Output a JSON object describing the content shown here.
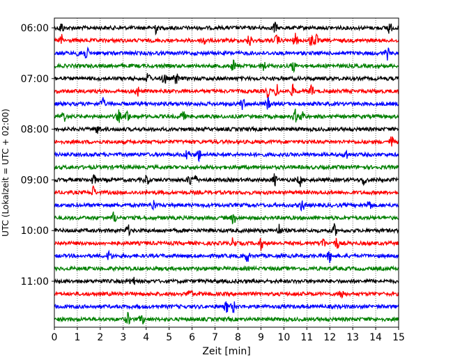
{
  "chart_data": {
    "type": "line",
    "title": "",
    "xlabel": "Zeit  [min]",
    "ylabel": "UTC (Lokalzeit = UTC + 02:00)",
    "xlim": [
      0,
      15
    ],
    "x_ticks": [
      "0",
      "1",
      "2",
      "3",
      "4",
      "5",
      "6",
      "7",
      "8",
      "9",
      "10",
      "11",
      "12",
      "13",
      "14",
      "15"
    ],
    "y_ticks": [
      "06:00",
      "07:00",
      "08:00",
      "09:00",
      "10:00",
      "11:00"
    ],
    "vertical_grid": "dotted",
    "trace_interval_min": 15,
    "trace_count": 24,
    "series_colors": [
      "#000000",
      "#ff0000",
      "#0000ff",
      "#008000"
    ],
    "events": [
      [
        0.3,
        4.4,
        9.6,
        14.6
      ],
      [
        0.3,
        6.5,
        8.5,
        9.7,
        10.5,
        11.2,
        11.4
      ],
      [
        1.1,
        1.4,
        14.5
      ],
      [
        7.8,
        9.1,
        10.4
      ],
      [
        4.1,
        4.8,
        5.3
      ],
      [
        3.6,
        9.3,
        9.7,
        10.4,
        11.2
      ],
      [
        2.1,
        8.2,
        9.3
      ],
      [
        0.4,
        2.8,
        3.2,
        5.6,
        10.5,
        10.8
      ],
      [
        1.9
      ],
      [
        14.7
      ],
      [
        5.8,
        6.3,
        12.7
      ],
      [],
      [
        1.7,
        4.0,
        5.9,
        6.1,
        9.6,
        10.7,
        13.5
      ],
      [
        1.7
      ],
      [
        4.3,
        10.8,
        13.7
      ],
      [
        2.6,
        7.8
      ],
      [
        3.2,
        9.8,
        12.2
      ],
      [
        7.8,
        9.0,
        11.7,
        12.3
      ],
      [
        2.4,
        8.4,
        12.0
      ],
      [],
      [
        3.4
      ],
      [
        5.9,
        12.5
      ],
      [
        7.5,
        7.8
      ],
      [
        3.2,
        3.8
      ]
    ]
  }
}
